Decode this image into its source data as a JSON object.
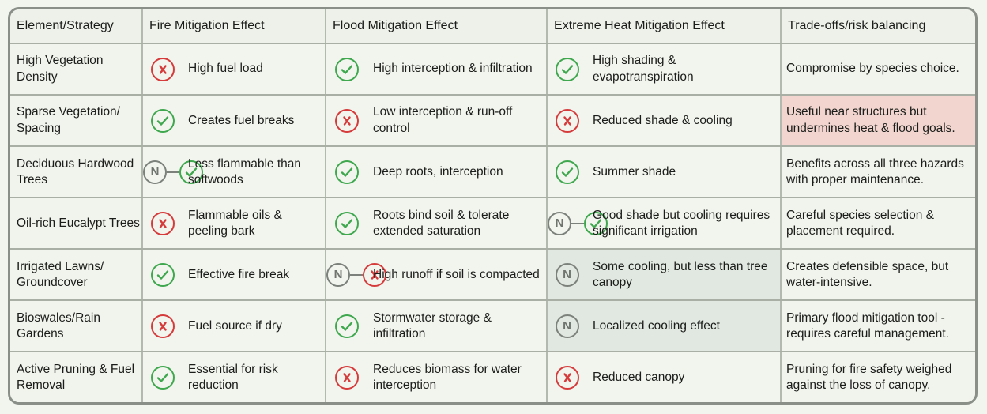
{
  "headers": {
    "element": "Element/Strategy",
    "fire": "Fire Mitigation Effect",
    "flood": "Flood Mitigation Effect",
    "heat": "Extreme Heat Mitigation Effect",
    "tradeoff": "Trade-offs/risk balancing"
  },
  "icon_legend": {
    "check": "check-icon",
    "x": "x-icon",
    "n": "N",
    "neutral_to_positive": "neutral-to-positive",
    "neutral_to_negative": "neutral-to-negative"
  },
  "colors": {
    "positive_bg": "#c6e2c1",
    "negative_bg": "#f1d5ce",
    "neutral_bg": "#e1e8e1",
    "check": "#3fa84e",
    "x": "#d63b3b",
    "neutral": "#7c817b"
  },
  "rows": [
    {
      "element": "High Vegetation Density",
      "fire": {
        "rating": "negative",
        "icon": "x",
        "text": "High fuel load"
      },
      "flood": {
        "rating": "positive",
        "icon": "check",
        "text": "High interception & infiltration"
      },
      "heat": {
        "rating": "positive",
        "icon": "check",
        "text": "High shading & evapotranspiration"
      },
      "tradeoff": "Compromise by species choice.",
      "tradeoff_rating": "neutral"
    },
    {
      "element": "Sparse Vegetation/ Spacing",
      "fire": {
        "rating": "positive",
        "icon": "check",
        "text": "Creates fuel breaks"
      },
      "flood": {
        "rating": "negative",
        "icon": "x",
        "text": "Low interception & run-off control"
      },
      "heat": {
        "rating": "negative",
        "icon": "x",
        "text": "Reduced shade & cooling"
      },
      "tradeoff": "Useful near structures but undermines heat & flood goals.",
      "tradeoff_rating": "negative"
    },
    {
      "element": "Deciduous Hardwood Trees",
      "fire": {
        "rating": "positive",
        "icon": "n-check",
        "text": "Less flammable than softwoods"
      },
      "flood": {
        "rating": "positive",
        "icon": "check",
        "text": "Deep roots, interception"
      },
      "heat": {
        "rating": "positive",
        "icon": "check",
        "text": "Summer shade"
      },
      "tradeoff": "Benefits across all three hazards with proper maintenance.",
      "tradeoff_rating": "neutral"
    },
    {
      "element": "Oil-rich Eucalypt Trees",
      "fire": {
        "rating": "negative",
        "icon": "x",
        "text": "Flammable oils & peeling bark"
      },
      "flood": {
        "rating": "positive",
        "icon": "check",
        "text": "Roots bind soil & tolerate extended saturation"
      },
      "heat": {
        "rating": "positive",
        "icon": "n-check",
        "text": "Good shade but cooling requires significant irrigation"
      },
      "tradeoff": "Careful species selection & placement required.",
      "tradeoff_rating": "neutral"
    },
    {
      "element": "Irrigated Lawns/ Groundcover",
      "fire": {
        "rating": "positive",
        "icon": "check",
        "text": "Effective fire break"
      },
      "flood": {
        "rating": "negative",
        "icon": "n-x",
        "text": "High runoff if soil is compacted"
      },
      "heat": {
        "rating": "neutral",
        "icon": "n",
        "text": "Some cooling, but less than tree canopy"
      },
      "tradeoff": "Creates defensible space, but water-intensive.",
      "tradeoff_rating": "neutral"
    },
    {
      "element": "Bioswales/Rain Gardens",
      "fire": {
        "rating": "negative",
        "icon": "x",
        "text": "Fuel source if dry"
      },
      "flood": {
        "rating": "positive",
        "icon": "check",
        "text": "Stormwater storage & infiltration"
      },
      "heat": {
        "rating": "neutral",
        "icon": "n",
        "text": "Localized cooling effect"
      },
      "tradeoff": "Primary flood mitigation tool - requires careful management.",
      "tradeoff_rating": "neutral"
    },
    {
      "element": "Active Pruning & Fuel Removal",
      "fire": {
        "rating": "positive",
        "icon": "check",
        "text": "Essential for risk reduction"
      },
      "flood": {
        "rating": "negative",
        "icon": "x",
        "text": "Reduces biomass for water interception"
      },
      "heat": {
        "rating": "negative",
        "icon": "x",
        "text": "Reduced canopy"
      },
      "tradeoff": "Pruning for fire safety weighed against the loss of canopy.",
      "tradeoff_rating": "neutral"
    }
  ]
}
